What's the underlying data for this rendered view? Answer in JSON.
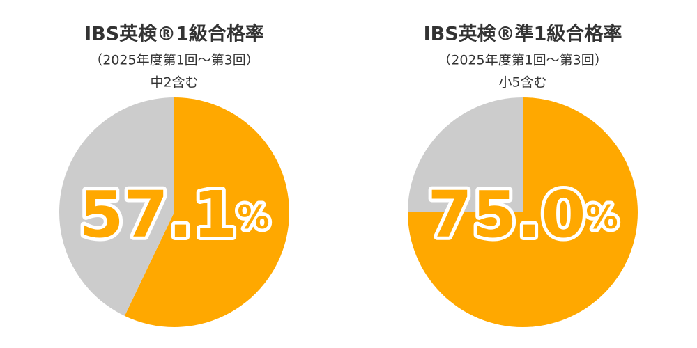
{
  "chart_data": [
    {
      "type": "pie",
      "title": "IBS英検®1級合格率",
      "subtitle": "（2025年度第1回〜第3回）",
      "annotation": "中2含む",
      "values": [
        57.1,
        42.9
      ],
      "value_labels": [
        "57.1%",
        null
      ],
      "colors": [
        "#ffa800",
        "#cccccc"
      ]
    },
    {
      "type": "pie",
      "title": "IBS英検®準1級合格率",
      "subtitle": "（2025年度第1回〜第3回）",
      "annotation": "小5含む",
      "values": [
        75.0,
        25.0
      ],
      "value_labels": [
        "75.0%",
        null
      ],
      "colors": [
        "#ffa800",
        "#cccccc"
      ]
    }
  ]
}
